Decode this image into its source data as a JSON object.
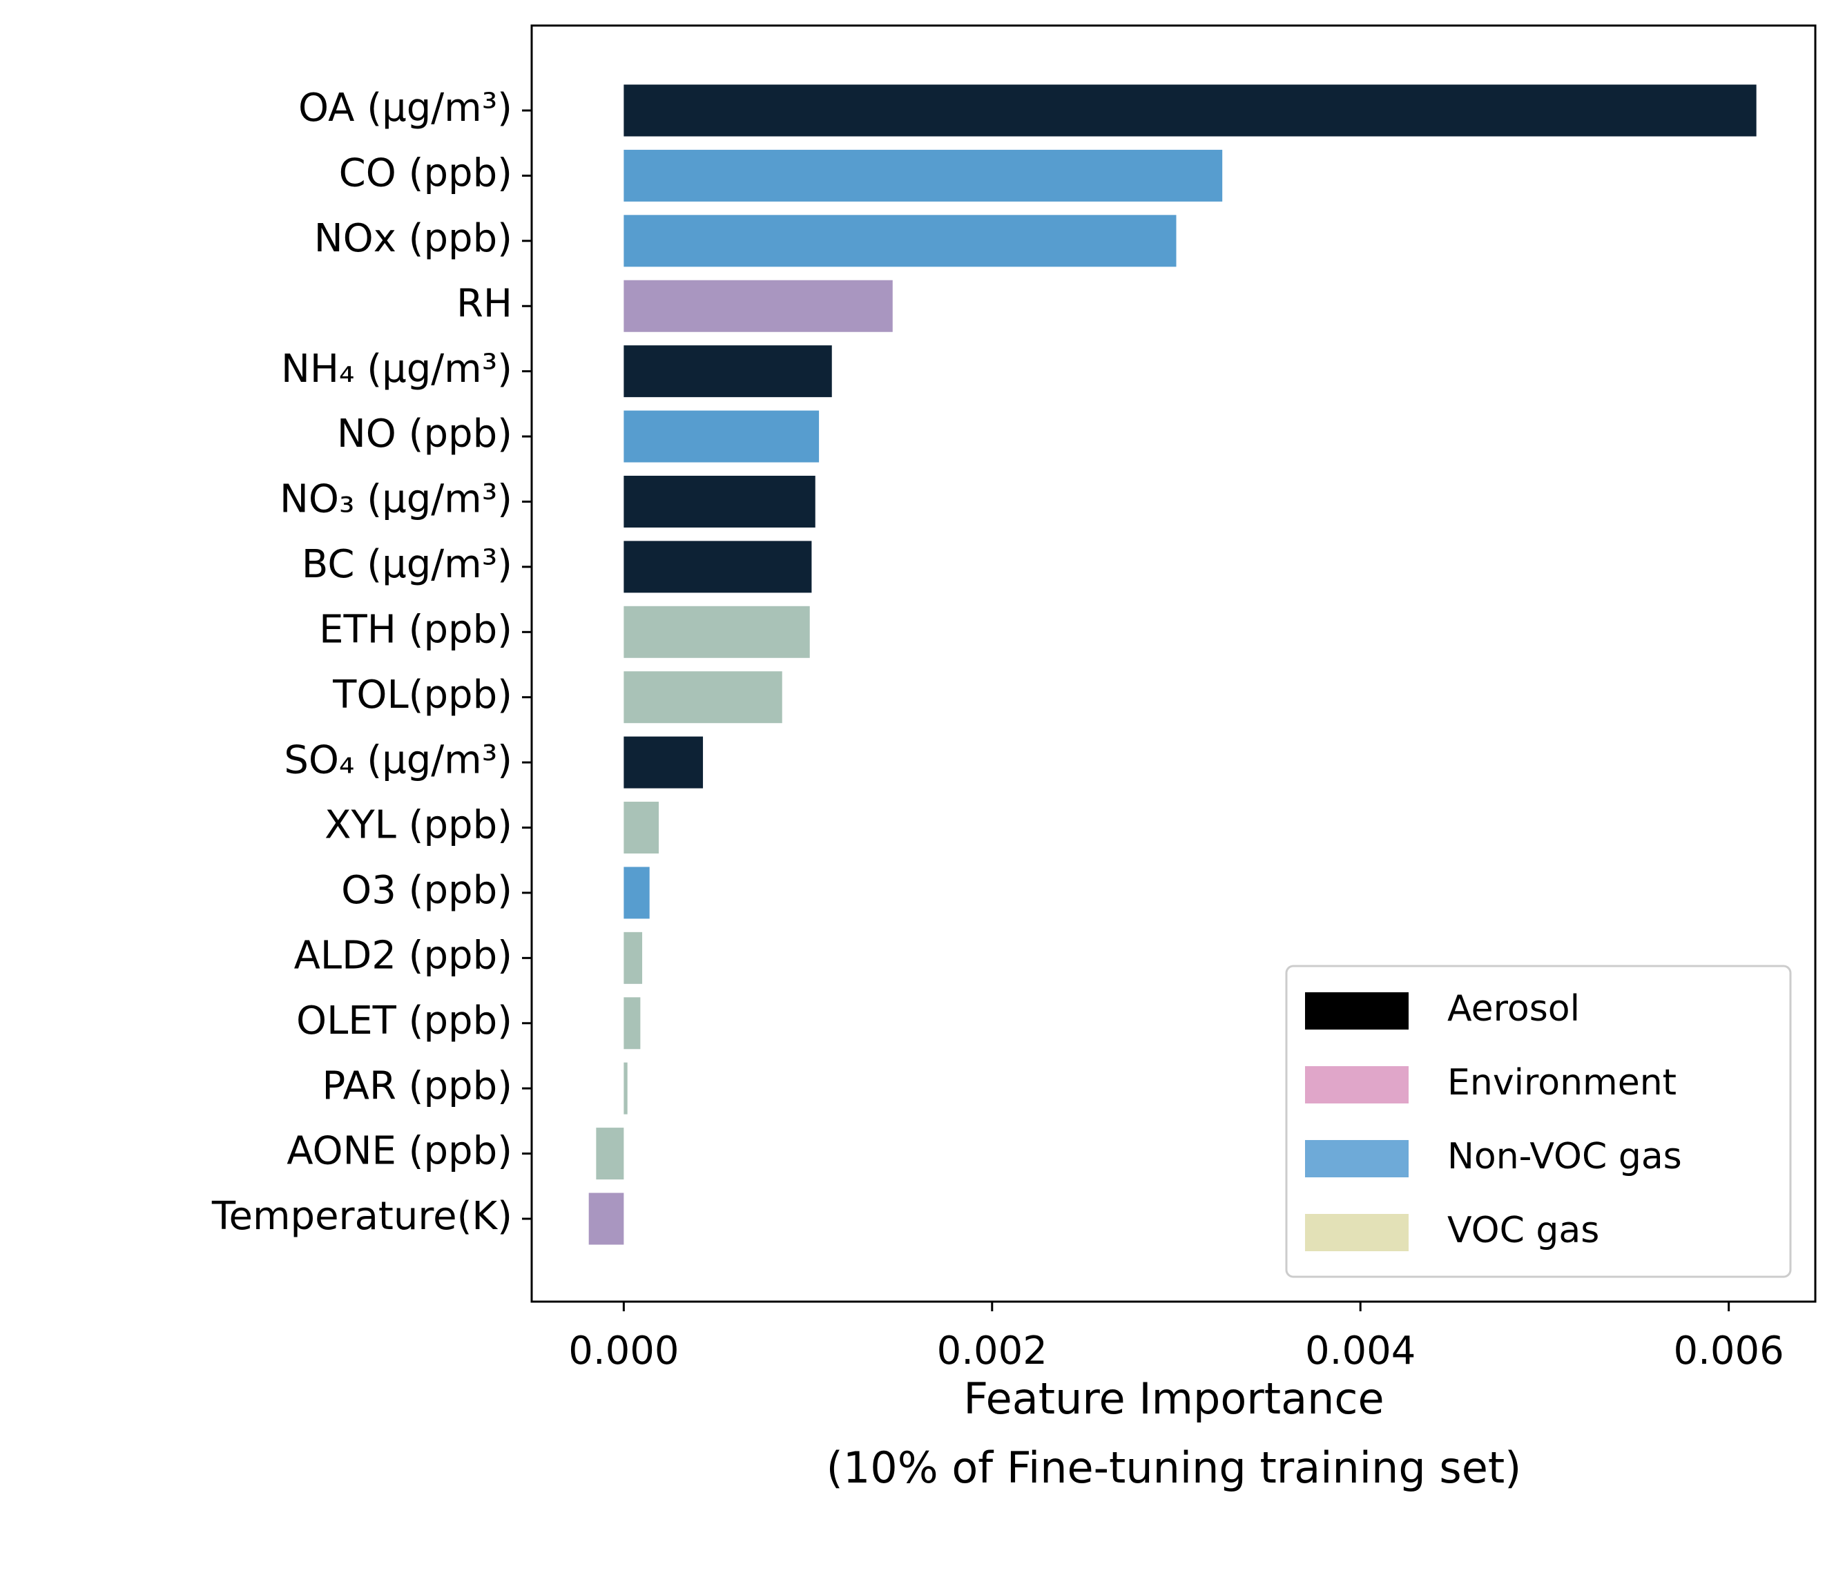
{
  "chart_data": {
    "type": "bar",
    "orientation": "horizontal",
    "xlabel": [
      "Feature Importance",
      "(10% of Fine-tuning training set)"
    ],
    "categories": [
      "OA (μg/m³)",
      "CO (ppb)",
      "NOx (ppb)",
      "RH",
      "NH₄ (μg/m³)",
      "NO (ppb)",
      "NO₃ (μg/m³)",
      "BC (μg/m³)",
      "ETH (ppb)",
      "TOL(ppb)",
      "SO₄ (μg/m³)",
      "XYL (ppb)",
      "O3 (ppb)",
      "ALD2 (ppb)",
      "OLET (ppb)",
      "PAR (ppb)",
      "AONE (ppb)",
      "Temperature(K)"
    ],
    "values": [
      0.00615,
      0.00325,
      0.003,
      0.00146,
      0.00113,
      0.00106,
      0.00104,
      0.00102,
      0.00101,
      0.00086,
      0.00043,
      0.00019,
      0.00014,
      0.0001,
      9e-05,
      2e-05,
      -0.00015,
      -0.00019
    ],
    "colors": [
      "#0d2235",
      "#579dcf",
      "#579dcf",
      "#a996c0",
      "#0d2235",
      "#579dcf",
      "#0d2235",
      "#0d2235",
      "#a9c2b7",
      "#a9c2b7",
      "#0d2235",
      "#a9c2b7",
      "#579dcf",
      "#a9c2b7",
      "#a9c2b7",
      "#a9c2b7",
      "#a9c2b7",
      "#a996c0"
    ],
    "xlim": [
      -0.0005,
      0.00647
    ],
    "xticks": [
      {
        "value": 0,
        "label": "0.000"
      },
      {
        "value": 0.002,
        "label": "0.002"
      },
      {
        "value": 0.004,
        "label": "0.004"
      },
      {
        "value": 0.006,
        "label": "0.006"
      }
    ],
    "legend": [
      {
        "name": "Aerosol",
        "color": "#000000"
      },
      {
        "name": "Environment",
        "color": "#e0a6c9"
      },
      {
        "name": "Non-VOC gas",
        "color": "#6eaad8"
      },
      {
        "name": "VOC gas",
        "color": "#e3e1b7"
      }
    ],
    "legend_position": "lower right"
  }
}
